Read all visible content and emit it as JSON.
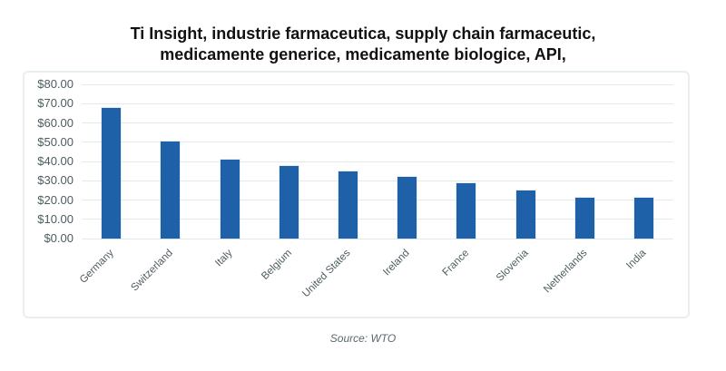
{
  "title": {
    "line1": "Ti Insight, industrie farmaceutica, supply chain farmaceutic,",
    "line2": "medicamente generice, medicamente biologice, API,"
  },
  "source": "Source: WTO",
  "colors": {
    "bar": "#1E61A8",
    "grid": "#E3EAEA",
    "panel_border": "#E9EEEE",
    "axis_text": "#4D5C60",
    "title_text": "#121212",
    "source_text": "#5A696D"
  },
  "chart_data": {
    "type": "bar",
    "title": "Ti Insight, industrie farmaceutica, supply chain farmaceutic, medicamente generice, medicamente biologice, API,",
    "categories": [
      "Germany",
      "Switzerland",
      "Italy",
      "Belgium",
      "United States",
      "Ireland",
      "France",
      "Slovenia",
      "Netherlands",
      "India"
    ],
    "values": [
      68,
      50.5,
      41,
      37.5,
      35,
      32,
      28.5,
      25,
      21,
      21
    ],
    "xlabel": "",
    "ylabel": "",
    "ylim": [
      0,
      80
    ],
    "y_ticks": [
      {
        "value": 0,
        "label": "$0.00"
      },
      {
        "value": 10,
        "label": "$10.00"
      },
      {
        "value": 20,
        "label": "$20.00"
      },
      {
        "value": 30,
        "label": "$30.00"
      },
      {
        "value": 40,
        "label": "$40.00"
      },
      {
        "value": 50,
        "label": "$50.00"
      },
      {
        "value": 60,
        "label": "$60.00"
      },
      {
        "value": 70,
        "label": "$70.00"
      },
      {
        "value": 80,
        "label": "$80.00"
      }
    ],
    "grid": true,
    "legend": false,
    "annotation": "Source: WTO"
  }
}
